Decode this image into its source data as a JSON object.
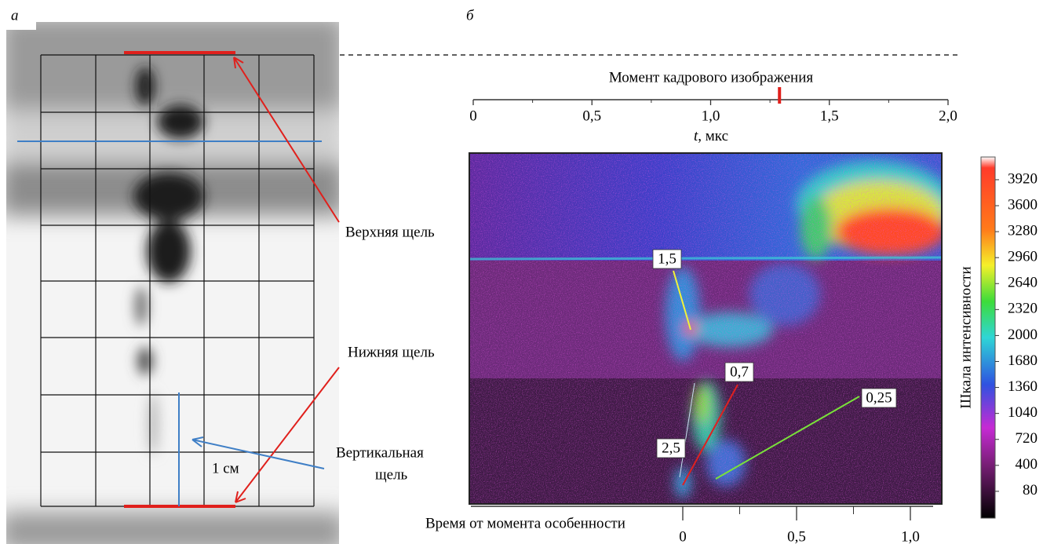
{
  "panel_a": {
    "letter": "а",
    "labels": {
      "upper_slit": "Верхняя щель",
      "lower_slit": "Нижняя щель",
      "vertical_slit_1": "Вертикальная",
      "vertical_slit_2": "щель",
      "scale": "1 см"
    }
  },
  "panel_b": {
    "letter": "б",
    "top_axis": {
      "title": "Момент кадрового изображения",
      "label_var": "t",
      "label_unit": ", мкс",
      "xlim": [
        0,
        2
      ],
      "xticks": [
        0,
        {
          "value": 0.5,
          "label": "0,5"
        },
        {
          "value": 1.0,
          "label": "1,0"
        },
        {
          "value": 1.5,
          "label": "1,5"
        },
        {
          "value": 2.0,
          "label": "2,0"
        }
      ],
      "frame_moment": 1.29
    },
    "bottom_axis": {
      "title": "Время от момента особенности",
      "xlim": [
        0,
        1.1
      ],
      "xticks": [
        0,
        {
          "value": 0.5,
          "label": "0,5"
        },
        {
          "value": 1.0,
          "label": "1,0"
        }
      ]
    },
    "colorbar": {
      "title": "Шкала интенсивности",
      "lim": [
        -250,
        4200
      ],
      "ticks": [
        80,
        400,
        720,
        1040,
        1360,
        1680,
        2000,
        2320,
        2640,
        2960,
        3280,
        3600,
        3920
      ]
    },
    "annotations": [
      "1,5",
      "0,7",
      "2,5",
      "0,25"
    ]
  }
}
